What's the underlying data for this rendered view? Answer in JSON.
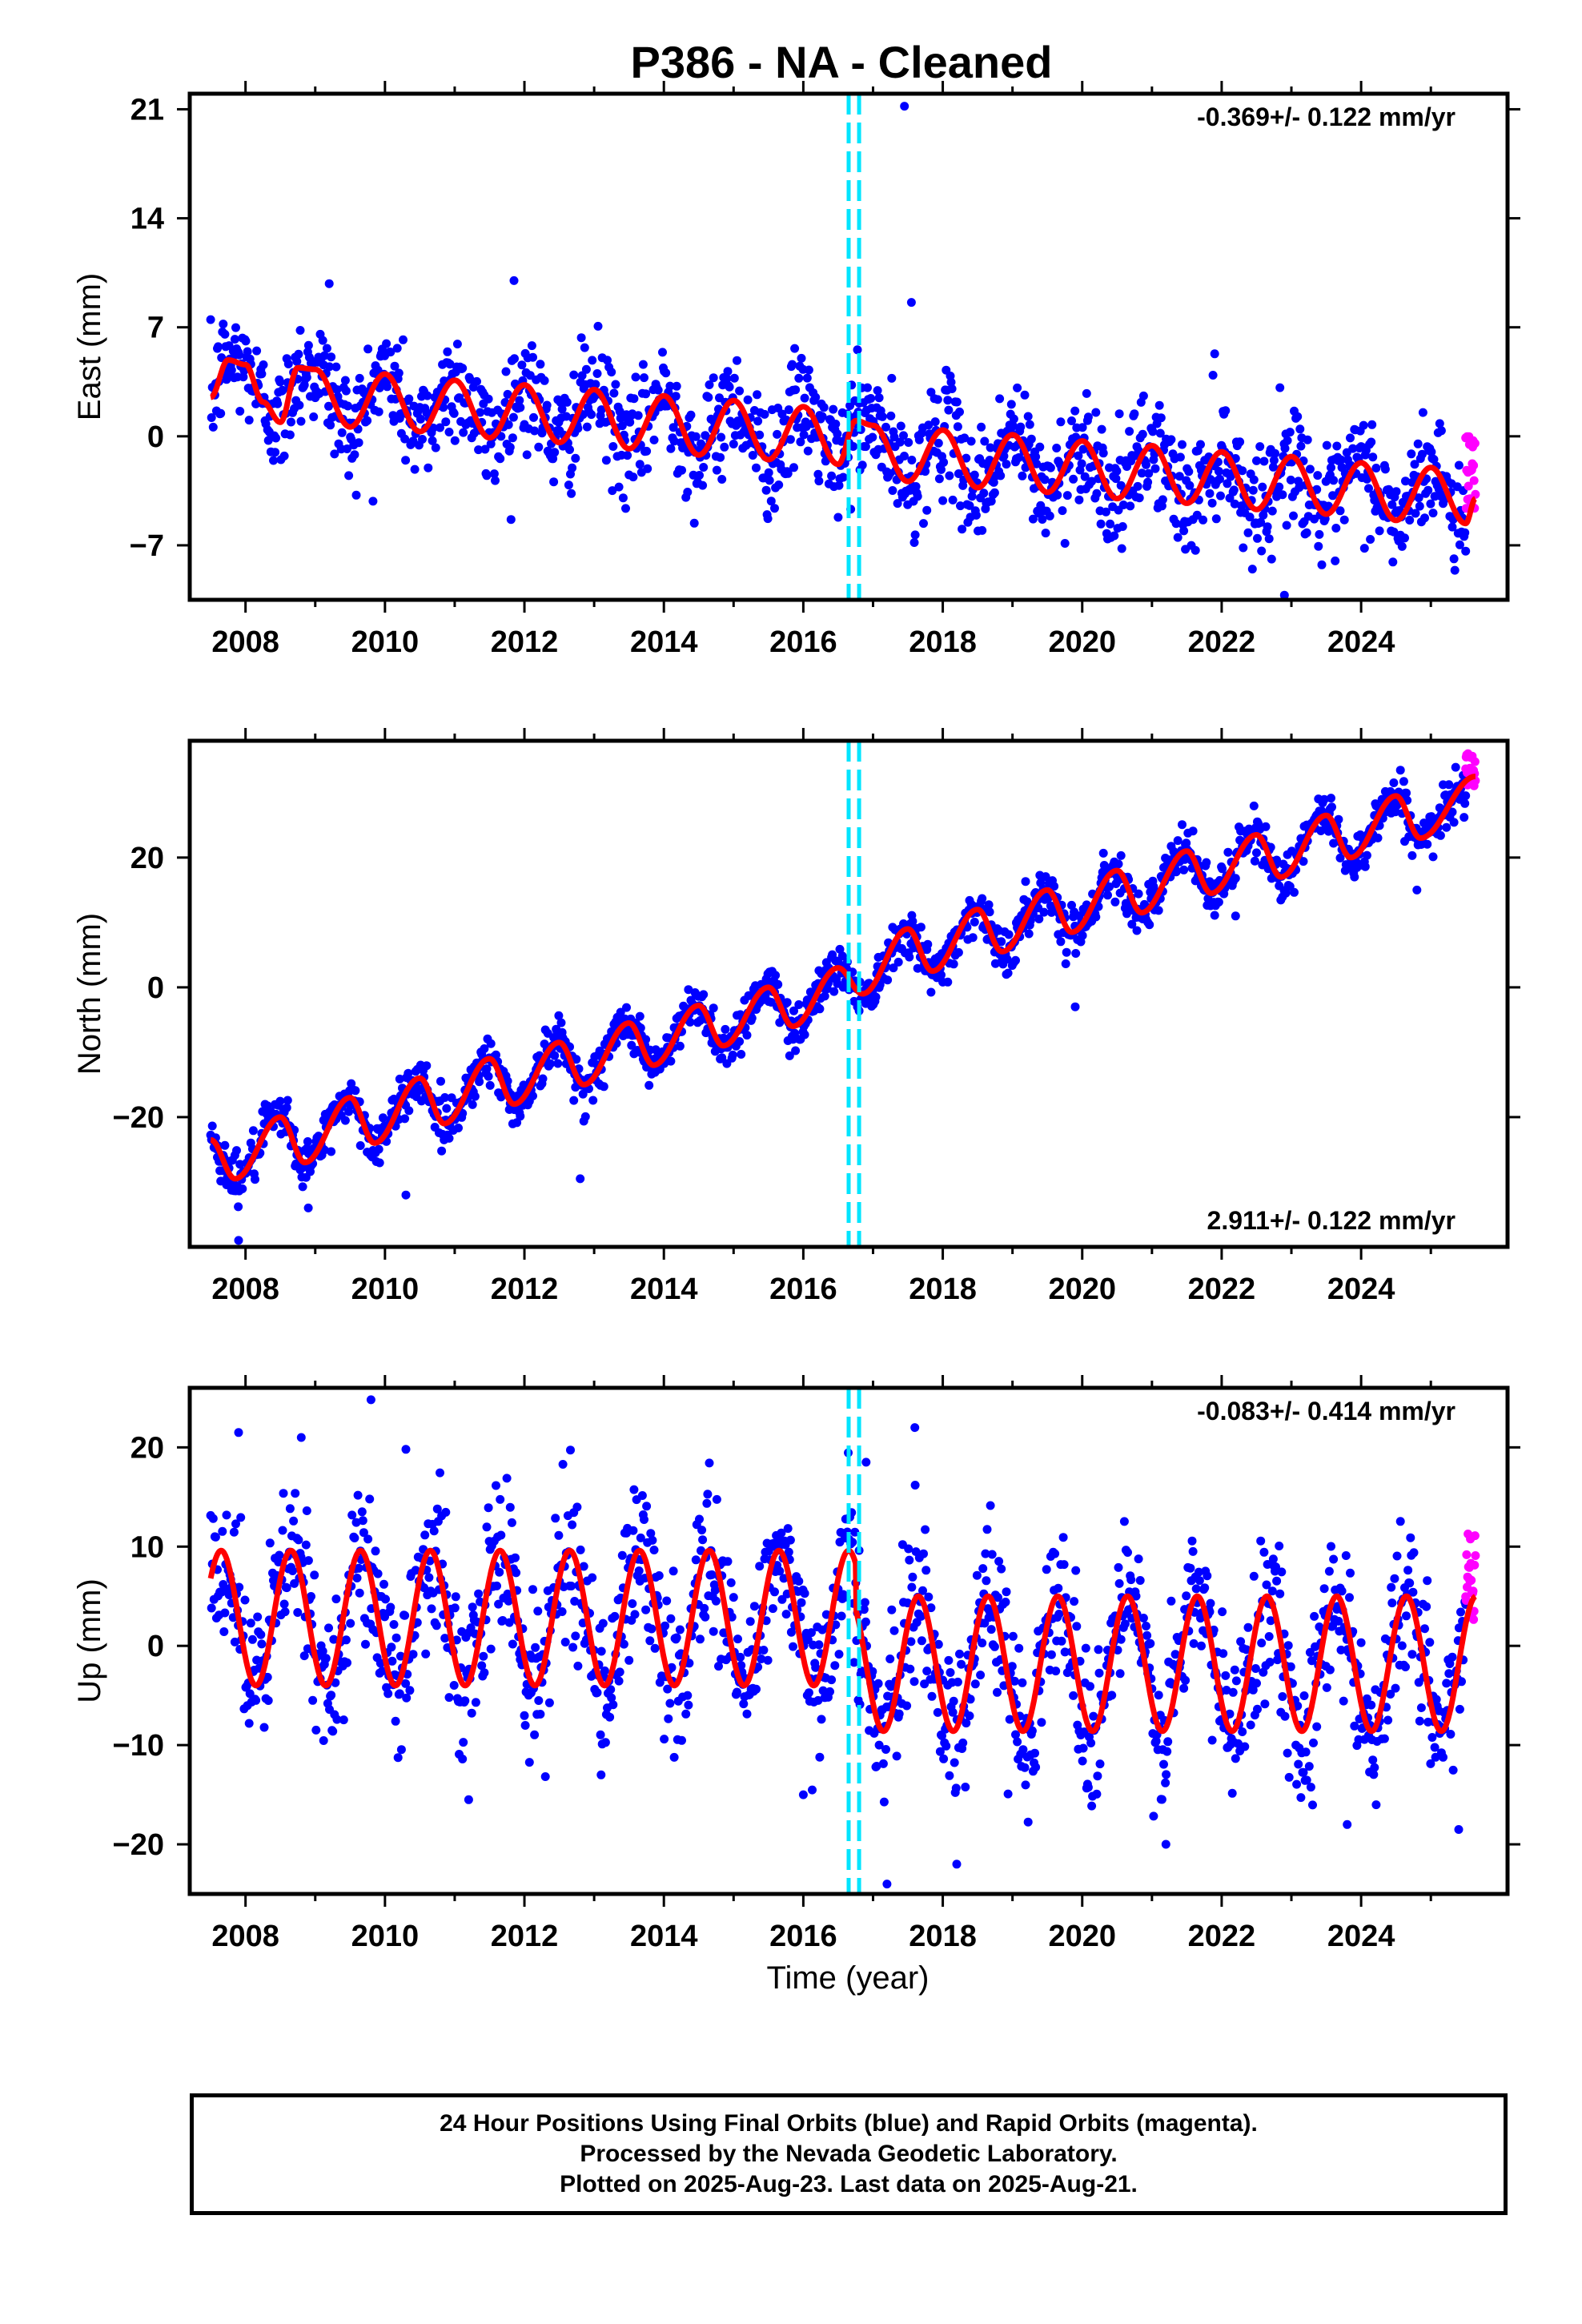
{
  "title": "P386  - NA - Cleaned",
  "xlabel": "Time (year)",
  "colors": {
    "final_orbits": "#0000ff",
    "rapid_orbits": "#ff00ff",
    "model_fit": "#ff0000",
    "event_lines": "#00e5ff"
  },
  "footer": {
    "line1": "24 Hour Positions Using Final Orbits (blue) and Rapid Orbits (magenta).",
    "line2": "Processed by the Nevada Geodetic Laboratory.",
    "line3": "Plotted on 2025-Aug-23. Last data on 2025-Aug-21."
  },
  "chart_data": [
    {
      "type": "scatter",
      "component": "East",
      "ylabel": "East (mm)",
      "xlim": [
        2007.2,
        2026.1
      ],
      "ylim": [
        -10.5,
        22
      ],
      "xticks": [
        2008,
        2010,
        2012,
        2014,
        2016,
        2018,
        2020,
        2022,
        2024
      ],
      "yticks": [
        -7,
        0,
        7,
        14,
        21
      ],
      "rate_label": "-0.369+/- 0.122 mm/yr",
      "rate_position": "top-right",
      "event_lines_x": [
        2016.65,
        2016.8
      ],
      "fit_model": {
        "start": 2007.5,
        "end": 2025.64,
        "series": [
          {
            "year": 2007.5,
            "value": 2.5
          },
          {
            "year": 2007.75,
            "value": 4.9
          },
          {
            "year": 2008.0,
            "value": 4.6
          },
          {
            "year": 2008.25,
            "value": 2.2
          },
          {
            "year": 2008.5,
            "value": 0.9
          },
          {
            "year": 2008.75,
            "value": 4.4
          },
          {
            "year": 2009.0,
            "value": 4.3
          },
          {
            "year": 2009.5,
            "value": 0.6
          },
          {
            "year": 2010.0,
            "value": 4.0
          },
          {
            "year": 2010.5,
            "value": 0.3
          },
          {
            "year": 2011.0,
            "value": 3.6
          },
          {
            "year": 2011.5,
            "value": -0.1
          },
          {
            "year": 2012.0,
            "value": 3.3
          },
          {
            "year": 2012.5,
            "value": -0.4
          },
          {
            "year": 2013.0,
            "value": 3.0
          },
          {
            "year": 2013.5,
            "value": -0.8
          },
          {
            "year": 2014.0,
            "value": 2.6
          },
          {
            "year": 2014.5,
            "value": -1.2
          },
          {
            "year": 2015.0,
            "value": 2.3
          },
          {
            "year": 2015.5,
            "value": -1.5
          },
          {
            "year": 2016.0,
            "value": 1.9
          },
          {
            "year": 2016.5,
            "value": -1.8
          },
          {
            "year": 2016.75,
            "value": 1.0
          },
          {
            "year": 2017.0,
            "value": 0.7
          },
          {
            "year": 2017.5,
            "value": -2.9
          },
          {
            "year": 2018.0,
            "value": 0.4
          },
          {
            "year": 2018.5,
            "value": -3.3
          },
          {
            "year": 2019.0,
            "value": 0.1
          },
          {
            "year": 2019.5,
            "value": -3.6
          },
          {
            "year": 2020.0,
            "value": -0.3
          },
          {
            "year": 2020.5,
            "value": -4.0
          },
          {
            "year": 2021.0,
            "value": -0.6
          },
          {
            "year": 2021.5,
            "value": -4.3
          },
          {
            "year": 2022.0,
            "value": -1.0
          },
          {
            "year": 2022.5,
            "value": -4.7
          },
          {
            "year": 2023.0,
            "value": -1.3
          },
          {
            "year": 2023.5,
            "value": -5.0
          },
          {
            "year": 2024.0,
            "value": -1.7
          },
          {
            "year": 2024.5,
            "value": -5.4
          },
          {
            "year": 2025.0,
            "value": -2.0
          },
          {
            "year": 2025.5,
            "value": -5.6
          },
          {
            "year": 2025.64,
            "value": -4.0
          }
        ]
      },
      "final_orbits": {
        "years": [
          2007.5,
          2008.0,
          2008.5,
          2009.0,
          2009.5,
          2010.0,
          2010.5,
          2011.0,
          2011.5,
          2012.0,
          2012.5,
          2013.0,
          2013.5,
          2014.0,
          2014.5,
          2015.0,
          2015.5,
          2016.0,
          2016.5,
          2017.0,
          2017.5,
          2018.0,
          2018.5,
          2019.0,
          2019.5,
          2020.0,
          2020.5,
          2021.0,
          2021.5,
          2022.0,
          2022.5,
          2023.0,
          2023.5,
          2024.0,
          2024.5,
          2025.0,
          2025.5
        ],
        "values": [
          2.5,
          4.6,
          0.9,
          4.3,
          0.6,
          4.0,
          0.3,
          3.6,
          -0.1,
          3.3,
          -0.4,
          3.0,
          -0.8,
          2.6,
          -1.2,
          2.3,
          -1.5,
          1.9,
          -1.8,
          0.7,
          -2.9,
          0.4,
          -3.3,
          0.1,
          -3.6,
          -0.3,
          -4.0,
          -0.6,
          -4.3,
          -1.0,
          -4.7,
          -1.3,
          -5.0,
          -1.7,
          -5.4,
          -2.0,
          -5.6
        ],
        "scatter_mm": 1.8,
        "outliers": [
          [
            2017.45,
            21.2
          ],
          [
            2017.55,
            8.6
          ],
          [
            2011.85,
            10.0
          ],
          [
            2009.2,
            9.8
          ],
          [
            2021.9,
            5.3
          ],
          [
            2022.9,
            -10.2
          ]
        ]
      },
      "rapid_orbits": {
        "start": 2025.5,
        "end": 2025.64,
        "low": -5.0,
        "high": 0.2
      }
    },
    {
      "type": "scatter",
      "component": "North",
      "ylabel": "North (mm)",
      "xlim": [
        2007.2,
        2026.1
      ],
      "ylim": [
        -40,
        38
      ],
      "xticks": [
        2008,
        2010,
        2012,
        2014,
        2016,
        2018,
        2020,
        2022,
        2024
      ],
      "yticks": [
        -20,
        0,
        20
      ],
      "rate_label": "2.911+/- 0.122 mm/yr",
      "rate_position": "bottom-right",
      "event_lines_x": [
        2016.65,
        2016.8
      ],
      "fit_model": {
        "start": 2007.5,
        "end": 2025.64,
        "series": [
          {
            "year": 2007.5,
            "value": -23.5
          },
          {
            "year": 2007.85,
            "value": -29.5
          },
          {
            "year": 2008.5,
            "value": -20.0
          },
          {
            "year": 2008.85,
            "value": -27.0
          },
          {
            "year": 2009.5,
            "value": -17.0
          },
          {
            "year": 2009.85,
            "value": -24.0
          },
          {
            "year": 2010.5,
            "value": -14.0
          },
          {
            "year": 2010.85,
            "value": -21.0
          },
          {
            "year": 2011.5,
            "value": -11.0
          },
          {
            "year": 2011.85,
            "value": -18.0
          },
          {
            "year": 2012.5,
            "value": -8.5
          },
          {
            "year": 2012.85,
            "value": -15.0
          },
          {
            "year": 2013.5,
            "value": -5.5
          },
          {
            "year": 2013.85,
            "value": -12.0
          },
          {
            "year": 2014.5,
            "value": -2.8
          },
          {
            "year": 2014.85,
            "value": -9.0
          },
          {
            "year": 2015.5,
            "value": 0.0
          },
          {
            "year": 2015.85,
            "value": -6.0
          },
          {
            "year": 2016.5,
            "value": 3.0
          },
          {
            "year": 2016.85,
            "value": -1.0
          },
          {
            "year": 2017.5,
            "value": 9.0
          },
          {
            "year": 2017.85,
            "value": 2.5
          },
          {
            "year": 2018.5,
            "value": 12.0
          },
          {
            "year": 2018.85,
            "value": 5.5
          },
          {
            "year": 2019.5,
            "value": 15.0
          },
          {
            "year": 2019.85,
            "value": 8.5
          },
          {
            "year": 2020.5,
            "value": 18.0
          },
          {
            "year": 2020.85,
            "value": 11.5
          },
          {
            "year": 2021.5,
            "value": 21.0
          },
          {
            "year": 2021.85,
            "value": 14.5
          },
          {
            "year": 2022.5,
            "value": 23.5
          },
          {
            "year": 2022.85,
            "value": 17.0
          },
          {
            "year": 2023.5,
            "value": 26.5
          },
          {
            "year": 2023.85,
            "value": 20.0
          },
          {
            "year": 2024.5,
            "value": 29.5
          },
          {
            "year": 2024.85,
            "value": 23.0
          },
          {
            "year": 2025.64,
            "value": 32.5
          }
        ]
      },
      "final_orbits": {
        "years": [
          2007.5,
          2008.0,
          2008.5,
          2009.0,
          2009.5,
          2010.0,
          2010.5,
          2011.0,
          2011.5,
          2012.0,
          2012.5,
          2013.0,
          2013.5,
          2014.0,
          2014.5,
          2015.0,
          2015.5,
          2016.0,
          2016.5,
          2017.0,
          2017.5,
          2018.0,
          2018.5,
          2019.0,
          2019.5,
          2020.0,
          2020.5,
          2021.0,
          2021.5,
          2022.0,
          2022.5,
          2023.0,
          2023.5,
          2024.0,
          2024.5,
          2025.0,
          2025.5
        ],
        "values": [
          -23.5,
          -28.0,
          -20.0,
          -25.0,
          -17.0,
          -22.0,
          -14.0,
          -19.0,
          -11.0,
          -16.0,
          -8.5,
          -13.0,
          -5.5,
          -10.0,
          -2.8,
          -7.0,
          0.0,
          -4.0,
          3.0,
          0.5,
          9.0,
          4.5,
          12.0,
          7.5,
          15.0,
          10.5,
          18.0,
          13.5,
          21.0,
          16.5,
          23.5,
          19.0,
          26.5,
          22.0,
          29.5,
          25.0,
          31.0
        ],
        "scatter_mm": 1.8,
        "outliers": [
          [
            2007.9,
            -39.0
          ],
          [
            2010.3,
            -32.0
          ],
          [
            2012.8,
            -29.5
          ],
          [
            2008.9,
            -34.0
          ],
          [
            2019.9,
            -3.0
          ],
          [
            2024.8,
            15.0
          ],
          [
            2022.2,
            11.0
          ]
        ]
      },
      "rapid_orbits": {
        "start": 2025.5,
        "end": 2025.64,
        "low": 31.0,
        "high": 36.5
      }
    },
    {
      "type": "scatter",
      "component": "Up",
      "ylabel": "Up (mm)",
      "xlim": [
        2007.2,
        2026.1
      ],
      "ylim": [
        -25,
        26
      ],
      "xticks": [
        2008,
        2010,
        2012,
        2014,
        2016,
        2018,
        2020,
        2022,
        2024
      ],
      "yticks": [
        -20,
        -10,
        0,
        10,
        20
      ],
      "rate_label": "-0.083+/- 0.414 mm/yr",
      "rate_position": "top-right",
      "event_lines_x": [
        2016.65,
        2016.8
      ],
      "fit_model": {
        "start": 2007.5,
        "end": 2025.64,
        "amplitude_before": 6.8,
        "offset_before": 2.8,
        "amplitude_after": 6.8,
        "offset_after": -1.8,
        "break_year": 2016.75,
        "peak_phase": 0.65,
        "extra_peak_values": [
          {
            "year": 2016.7,
            "value": 8.7
          }
        ]
      },
      "final_orbits": {
        "scatter_mm": 4.0,
        "outliers": [
          [
            2009.8,
            24.8
          ],
          [
            2007.9,
            21.5
          ],
          [
            2008.8,
            21.0
          ],
          [
            2010.3,
            19.8
          ],
          [
            2017.6,
            22.0
          ],
          [
            2016.9,
            18.5
          ],
          [
            2017.2,
            -24.0
          ],
          [
            2018.2,
            -22.0
          ],
          [
            2021.2,
            -20.0
          ],
          [
            2025.4,
            -18.5
          ],
          [
            2023.8,
            -18.0
          ],
          [
            2011.2,
            -15.5
          ],
          [
            2016.0,
            -15.0
          ],
          [
            2013.1,
            -13.0
          ]
        ]
      },
      "rapid_orbits": {
        "start": 2025.5,
        "end": 2025.64,
        "low": 2.0,
        "high": 12.5
      }
    }
  ]
}
